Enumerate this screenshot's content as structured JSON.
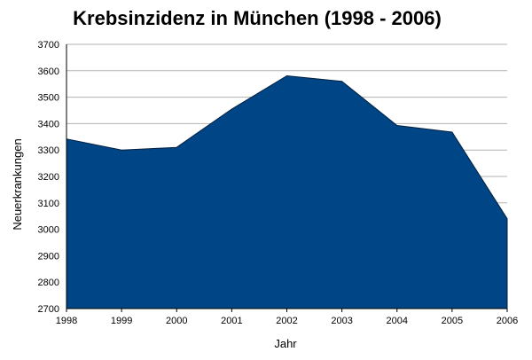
{
  "chart_data": {
    "type": "area",
    "title": "Krebsinzidenz in München (1998 - 2006)",
    "xlabel": "Jahr",
    "ylabel": "Neuerkrankungen",
    "x": [
      "1998",
      "1999",
      "2000",
      "2001",
      "2002",
      "2003",
      "2004",
      "2005",
      "2006"
    ],
    "series": [
      {
        "values": [
          3342,
          3300,
          3310,
          3455,
          3581,
          3560,
          3393,
          3368,
          3040
        ]
      }
    ],
    "ylim": [
      2700,
      3700
    ],
    "yticks": [
      "3700",
      "3600",
      "3500",
      "3400",
      "3300",
      "3200",
      "3100",
      "3000",
      "2900",
      "2800",
      "2700"
    ],
    "grid": true,
    "fill_color": "#004586",
    "grid_color": "#b3b3b3",
    "legend": "none"
  }
}
